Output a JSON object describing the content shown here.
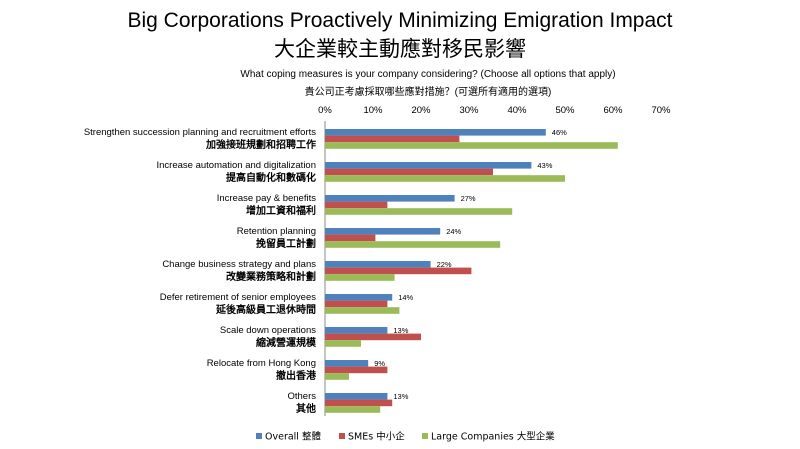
{
  "title": "Big Corporations Proactively Minimizing Emigration Impact",
  "title_zh": "大企業較主動應對移民影響",
  "question": "What coping measures is your company considering? (Choose all options that apply)",
  "question_zh": "貴公司正考慮採取哪些應對措施？(可選所有適用的選項)",
  "chart_data": {
    "type": "bar",
    "orientation": "horizontal",
    "xlim": [
      0,
      70
    ],
    "x_ticks": [
      "0%",
      "10%",
      "20%",
      "30%",
      "40%",
      "50%",
      "60%",
      "70%"
    ],
    "x_axis_position": "top",
    "grid": false,
    "legend_position": "bottom",
    "categories": [
      {
        "en": "Strengthen succession planning and recruitment efforts",
        "zh": "加強接班規劃和招聘工作"
      },
      {
        "en": "Increase automation and digitalization",
        "zh": "提高自動化和數碼化"
      },
      {
        "en": "Increase pay & benefits",
        "zh": "增加工資和福利"
      },
      {
        "en": "Retention planning",
        "zh": "挽留員工計劃"
      },
      {
        "en": "Change business strategy and plans",
        "zh": "改變業務策略和計劃"
      },
      {
        "en": "Defer retirement of senior employees",
        "zh": "延後高級員工退休時間"
      },
      {
        "en": "Scale down operations",
        "zh": "縮減營運規模"
      },
      {
        "en": "Relocate from Hong Kong",
        "zh": "撤出香港"
      },
      {
        "en": "Others",
        "zh": "其他"
      }
    ],
    "series": [
      {
        "name": "Overall 整體",
        "color": "#4f81bd",
        "values": [
          46,
          43,
          27,
          24,
          22,
          14,
          13,
          9,
          13
        ],
        "data_labels": [
          "46%",
          "43%",
          "27%",
          "24%",
          "22%",
          "14%",
          "13%",
          "9%",
          "13%"
        ]
      },
      {
        "name": "SMEs 中小企",
        "color": "#c0504d",
        "values": [
          28,
          35,
          13,
          10.5,
          30.5,
          13,
          20,
          13,
          14
        ]
      },
      {
        "name": "Large Companies 大型企業",
        "color": "#9bbb59",
        "values": [
          61,
          50,
          39,
          36.5,
          14.5,
          15.5,
          7.5,
          5,
          11.5
        ]
      }
    ]
  }
}
